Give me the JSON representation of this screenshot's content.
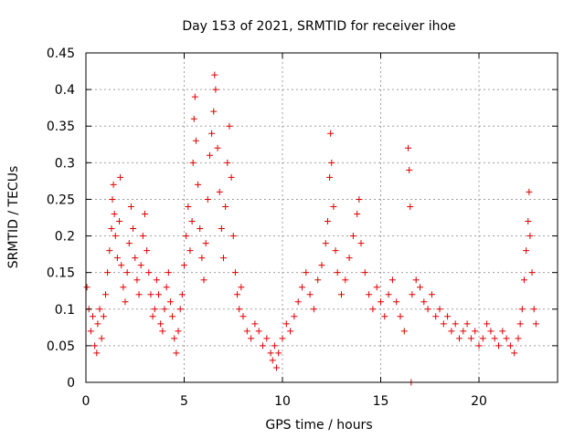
{
  "chart_data": {
    "type": "scatter",
    "title": "Day 153 of 2021, SRMTID for receiver ihoe",
    "xlabel": "GPS time / hours",
    "ylabel": "SRMTID / TECUs",
    "xlim": [
      0,
      24
    ],
    "ylim": [
      0,
      0.45
    ],
    "xticks": [
      0,
      5,
      10,
      15,
      20
    ],
    "xtick_labels": [
      "0",
      "5",
      "10",
      "15",
      "20"
    ],
    "yticks": [
      0,
      0.05,
      0.1,
      0.15,
      0.2,
      0.25,
      0.3,
      0.35,
      0.4,
      0.45
    ],
    "ytick_labels": [
      "0",
      "0.05",
      "0.1",
      "0.15",
      "0.2",
      "0.25",
      "0.3",
      "0.35",
      "0.4",
      "0.45"
    ],
    "grid": true,
    "marker": "plus",
    "color": "#e00000",
    "series": [
      {
        "name": "SRMTID",
        "points": [
          [
            0.05,
            0.13
          ],
          [
            0.15,
            0.1
          ],
          [
            0.25,
            0.07
          ],
          [
            0.35,
            0.09
          ],
          [
            0.45,
            0.05
          ],
          [
            0.55,
            0.04
          ],
          [
            0.6,
            0.08
          ],
          [
            0.7,
            0.1
          ],
          [
            0.8,
            0.06
          ],
          [
            0.9,
            0.09
          ],
          [
            1.0,
            0.12
          ],
          [
            1.1,
            0.15
          ],
          [
            1.2,
            0.18
          ],
          [
            1.3,
            0.21
          ],
          [
            1.35,
            0.25
          ],
          [
            1.4,
            0.27
          ],
          [
            1.45,
            0.23
          ],
          [
            1.5,
            0.2
          ],
          [
            1.6,
            0.17
          ],
          [
            1.7,
            0.22
          ],
          [
            1.75,
            0.28
          ],
          [
            1.8,
            0.16
          ],
          [
            1.9,
            0.13
          ],
          [
            2.0,
            0.11
          ],
          [
            2.1,
            0.15
          ],
          [
            2.2,
            0.19
          ],
          [
            2.3,
            0.24
          ],
          [
            2.4,
            0.21
          ],
          [
            2.5,
            0.17
          ],
          [
            2.6,
            0.14
          ],
          [
            2.7,
            0.12
          ],
          [
            2.8,
            0.16
          ],
          [
            2.9,
            0.2
          ],
          [
            3.0,
            0.23
          ],
          [
            3.1,
            0.18
          ],
          [
            3.2,
            0.15
          ],
          [
            3.3,
            0.12
          ],
          [
            3.4,
            0.09
          ],
          [
            3.5,
            0.1
          ],
          [
            3.6,
            0.14
          ],
          [
            3.7,
            0.12
          ],
          [
            3.8,
            0.08
          ],
          [
            3.9,
            0.07
          ],
          [
            4.0,
            0.1
          ],
          [
            4.1,
            0.13
          ],
          [
            4.2,
            0.15
          ],
          [
            4.3,
            0.11
          ],
          [
            4.4,
            0.09
          ],
          [
            4.5,
            0.06
          ],
          [
            4.6,
            0.04
          ],
          [
            4.7,
            0.07
          ],
          [
            4.8,
            0.1
          ],
          [
            4.9,
            0.12
          ],
          [
            5.0,
            0.16
          ],
          [
            5.1,
            0.2
          ],
          [
            5.2,
            0.24
          ],
          [
            5.3,
            0.18
          ],
          [
            5.4,
            0.22
          ],
          [
            5.45,
            0.3
          ],
          [
            5.5,
            0.36
          ],
          [
            5.55,
            0.39
          ],
          [
            5.6,
            0.33
          ],
          [
            5.7,
            0.27
          ],
          [
            5.8,
            0.21
          ],
          [
            5.9,
            0.17
          ],
          [
            6.0,
            0.14
          ],
          [
            6.1,
            0.19
          ],
          [
            6.2,
            0.25
          ],
          [
            6.3,
            0.31
          ],
          [
            6.4,
            0.34
          ],
          [
            6.5,
            0.37
          ],
          [
            6.55,
            0.42
          ],
          [
            6.6,
            0.4
          ],
          [
            6.7,
            0.32
          ],
          [
            6.8,
            0.26
          ],
          [
            6.9,
            0.21
          ],
          [
            7.0,
            0.17
          ],
          [
            7.1,
            0.24
          ],
          [
            7.2,
            0.3
          ],
          [
            7.3,
            0.35
          ],
          [
            7.4,
            0.28
          ],
          [
            7.5,
            0.2
          ],
          [
            7.6,
            0.15
          ],
          [
            7.7,
            0.12
          ],
          [
            7.8,
            0.1
          ],
          [
            7.9,
            0.13
          ],
          [
            8.0,
            0.09
          ],
          [
            8.2,
            0.07
          ],
          [
            8.4,
            0.06
          ],
          [
            8.6,
            0.08
          ],
          [
            8.8,
            0.07
          ],
          [
            9.0,
            0.05
          ],
          [
            9.2,
            0.06
          ],
          [
            9.4,
            0.04
          ],
          [
            9.5,
            0.03
          ],
          [
            9.6,
            0.05
          ],
          [
            9.7,
            0.02
          ],
          [
            9.8,
            0.04
          ],
          [
            10.0,
            0.06
          ],
          [
            10.2,
            0.08
          ],
          [
            10.4,
            0.07
          ],
          [
            10.6,
            0.09
          ],
          [
            10.8,
            0.11
          ],
          [
            11.0,
            0.13
          ],
          [
            11.2,
            0.15
          ],
          [
            11.4,
            0.12
          ],
          [
            11.6,
            0.1
          ],
          [
            11.8,
            0.14
          ],
          [
            12.0,
            0.16
          ],
          [
            12.2,
            0.19
          ],
          [
            12.3,
            0.22
          ],
          [
            12.4,
            0.28
          ],
          [
            12.45,
            0.34
          ],
          [
            12.5,
            0.3
          ],
          [
            12.6,
            0.24
          ],
          [
            12.7,
            0.18
          ],
          [
            12.8,
            0.15
          ],
          [
            13.0,
            0.12
          ],
          [
            13.2,
            0.14
          ],
          [
            13.4,
            0.17
          ],
          [
            13.6,
            0.2
          ],
          [
            13.8,
            0.23
          ],
          [
            13.9,
            0.25
          ],
          [
            14.0,
            0.19
          ],
          [
            14.2,
            0.15
          ],
          [
            14.4,
            0.12
          ],
          [
            14.6,
            0.1
          ],
          [
            14.8,
            0.13
          ],
          [
            15.0,
            0.11
          ],
          [
            15.2,
            0.09
          ],
          [
            15.4,
            0.12
          ],
          [
            15.6,
            0.14
          ],
          [
            15.8,
            0.11
          ],
          [
            16.0,
            0.09
          ],
          [
            16.2,
            0.07
          ],
          [
            16.4,
            0.32
          ],
          [
            16.45,
            0.29
          ],
          [
            16.5,
            0.24
          ],
          [
            16.55,
            0.0
          ],
          [
            16.6,
            0.12
          ],
          [
            16.8,
            0.14
          ],
          [
            17.0,
            0.13
          ],
          [
            17.2,
            0.11
          ],
          [
            17.4,
            0.1
          ],
          [
            17.6,
            0.12
          ],
          [
            17.8,
            0.09
          ],
          [
            18.0,
            0.1
          ],
          [
            18.2,
            0.08
          ],
          [
            18.4,
            0.09
          ],
          [
            18.6,
            0.07
          ],
          [
            18.8,
            0.08
          ],
          [
            19.0,
            0.06
          ],
          [
            19.2,
            0.07
          ],
          [
            19.4,
            0.08
          ],
          [
            19.6,
            0.06
          ],
          [
            19.8,
            0.07
          ],
          [
            20.0,
            0.05
          ],
          [
            20.2,
            0.06
          ],
          [
            20.4,
            0.08
          ],
          [
            20.6,
            0.07
          ],
          [
            20.8,
            0.06
          ],
          [
            21.0,
            0.05
          ],
          [
            21.2,
            0.07
          ],
          [
            21.4,
            0.06
          ],
          [
            21.6,
            0.05
          ],
          [
            21.8,
            0.04
          ],
          [
            22.0,
            0.06
          ],
          [
            22.1,
            0.08
          ],
          [
            22.2,
            0.1
          ],
          [
            22.3,
            0.14
          ],
          [
            22.4,
            0.18
          ],
          [
            22.5,
            0.22
          ],
          [
            22.55,
            0.26
          ],
          [
            22.6,
            0.2
          ],
          [
            22.7,
            0.15
          ],
          [
            22.8,
            0.1
          ],
          [
            22.9,
            0.08
          ]
        ]
      }
    ]
  }
}
